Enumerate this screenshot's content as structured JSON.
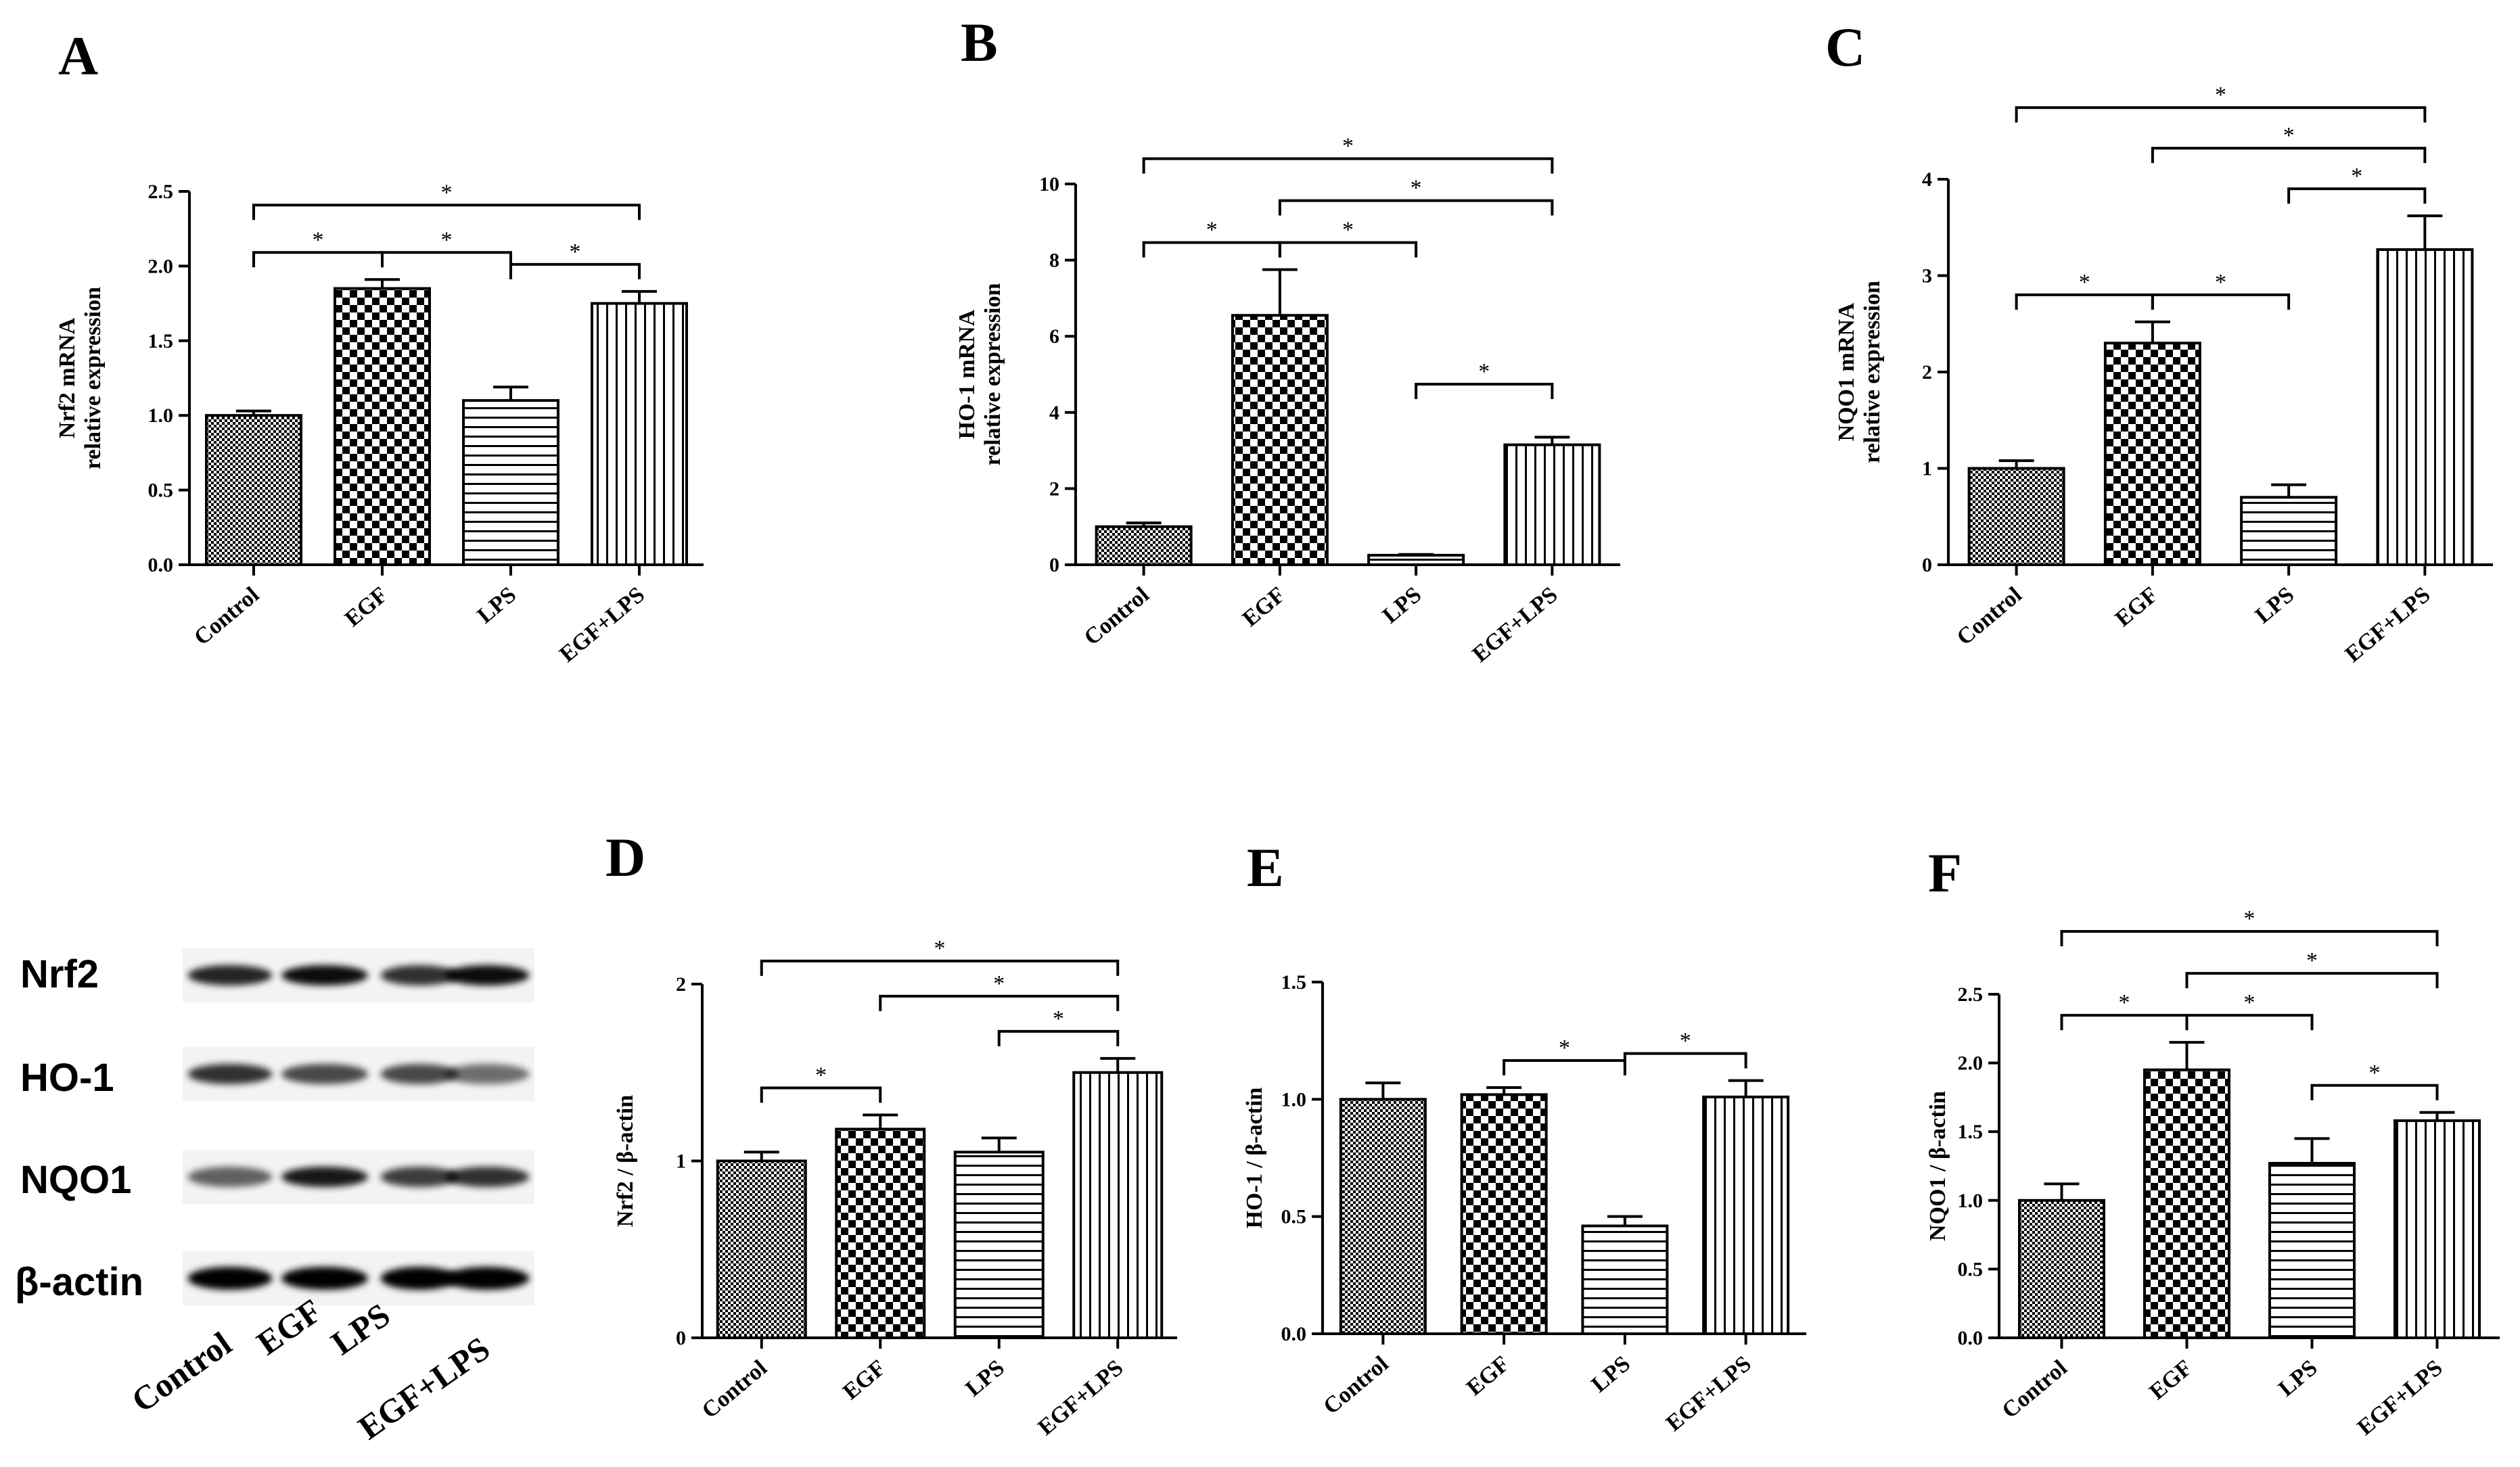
{
  "colors": {
    "ink": "#000000",
    "background": "#ffffff"
  },
  "blot": {
    "letter": "",
    "rows": [
      "Nrf2",
      "HO-1",
      "NQO1",
      "β-actin"
    ],
    "lanes": [
      "Control",
      "EGF",
      "LPS",
      "EGF+LPS"
    ]
  },
  "chart_data": [
    {
      "panel": "A",
      "type": "bar",
      "categories": [
        "Control",
        "EGF",
        "LPS",
        "EGF+LPS"
      ],
      "values": [
        1.0,
        1.85,
        1.1,
        1.75
      ],
      "errors": [
        0.03,
        0.06,
        0.09,
        0.08
      ],
      "ylabel_lines": [
        "Nrf2 mRNA",
        "relative expression"
      ],
      "ylim": [
        0,
        2.5
      ],
      "yticks": [
        "0.0",
        "0.5",
        "1.0",
        "1.5",
        "2.0",
        "2.5"
      ],
      "significance": [
        {
          "from": 0,
          "to": 3,
          "label": "*"
        },
        {
          "from": 0,
          "to": 1,
          "label": "*"
        },
        {
          "from": 1,
          "to": 2,
          "label": "*"
        },
        {
          "from": 2,
          "to": 3,
          "label": "*"
        }
      ]
    },
    {
      "panel": "B",
      "type": "bar",
      "categories": [
        "Control",
        "EGF",
        "LPS",
        "EGF+LPS"
      ],
      "values": [
        1.0,
        6.55,
        0.25,
        3.15
      ],
      "errors": [
        0.1,
        1.2,
        0.02,
        0.2
      ],
      "ylabel_lines": [
        "HO-1 mRNA",
        "relative expression"
      ],
      "ylim": [
        0,
        10
      ],
      "yticks": [
        "0",
        "2",
        "4",
        "6",
        "8",
        "10"
      ],
      "significance": [
        {
          "from": 0,
          "to": 3,
          "label": "*"
        },
        {
          "from": 1,
          "to": 3,
          "label": "*"
        },
        {
          "from": 0,
          "to": 1,
          "label": "*"
        },
        {
          "from": 1,
          "to": 2,
          "label": "*"
        },
        {
          "from": 2,
          "to": 3,
          "label": "*"
        }
      ]
    },
    {
      "panel": "C",
      "type": "bar",
      "categories": [
        "Control",
        "EGF",
        "LPS",
        "EGF+LPS"
      ],
      "values": [
        1.0,
        2.3,
        0.7,
        3.27
      ],
      "errors": [
        0.08,
        0.22,
        0.13,
        0.35
      ],
      "ylabel_lines": [
        "NQO1 mRNA",
        "relative expression"
      ],
      "ylim": [
        0,
        4
      ],
      "yticks": [
        "0",
        "1",
        "2",
        "3",
        "4"
      ],
      "significance": [
        {
          "from": 0,
          "to": 3,
          "label": "*"
        },
        {
          "from": 1,
          "to": 3,
          "label": "*"
        },
        {
          "from": 2,
          "to": 3,
          "label": "*"
        },
        {
          "from": 0,
          "to": 1,
          "label": "*"
        },
        {
          "from": 1,
          "to": 2,
          "label": "*"
        }
      ]
    },
    {
      "panel": "D",
      "type": "bar",
      "categories": [
        "Control",
        "EGF",
        "LPS",
        "EGF+LPS"
      ],
      "values": [
        1.0,
        1.18,
        1.05,
        1.5
      ],
      "errors": [
        0.05,
        0.08,
        0.08,
        0.08
      ],
      "ylabel_lines": [
        "Nrf2 / β-actin"
      ],
      "ylim": [
        0,
        2
      ],
      "yticks": [
        "0",
        "1",
        "2"
      ],
      "significance": [
        {
          "from": 0,
          "to": 3,
          "label": "*"
        },
        {
          "from": 1,
          "to": 3,
          "label": "*"
        },
        {
          "from": 2,
          "to": 3,
          "label": "*"
        },
        {
          "from": 0,
          "to": 1,
          "label": "*"
        }
      ]
    },
    {
      "panel": "E",
      "type": "bar",
      "categories": [
        "Control",
        "EGF",
        "LPS",
        "EGF+LPS"
      ],
      "values": [
        1.0,
        1.02,
        0.46,
        1.01
      ],
      "errors": [
        0.07,
        0.03,
        0.04,
        0.07
      ],
      "ylabel_lines": [
        "HO-1 / β-actin"
      ],
      "ylim": [
        0,
        1.5
      ],
      "yticks": [
        "0.0",
        "0.5",
        "1.0",
        "1.5"
      ],
      "significance": [
        {
          "from": 1,
          "to": 2,
          "label": "*"
        },
        {
          "from": 2,
          "to": 3,
          "label": "*"
        }
      ]
    },
    {
      "panel": "F",
      "type": "bar",
      "categories": [
        "Control",
        "EGF",
        "LPS",
        "EGF+LPS"
      ],
      "values": [
        1.0,
        1.95,
        1.27,
        1.58
      ],
      "errors": [
        0.12,
        0.2,
        0.18,
        0.06
      ],
      "ylabel_lines": [
        "NQO1 / β-actin"
      ],
      "ylim": [
        0,
        2.5
      ],
      "yticks": [
        "0.0",
        "0.5",
        "1.0",
        "1.5",
        "2.0",
        "2.5"
      ],
      "significance": [
        {
          "from": 0,
          "to": 3,
          "label": "*"
        },
        {
          "from": 1,
          "to": 3,
          "label": "*"
        },
        {
          "from": 0,
          "to": 1,
          "label": "*"
        },
        {
          "from": 1,
          "to": 2,
          "label": "*"
        },
        {
          "from": 2,
          "to": 3,
          "label": "*"
        }
      ]
    }
  ]
}
